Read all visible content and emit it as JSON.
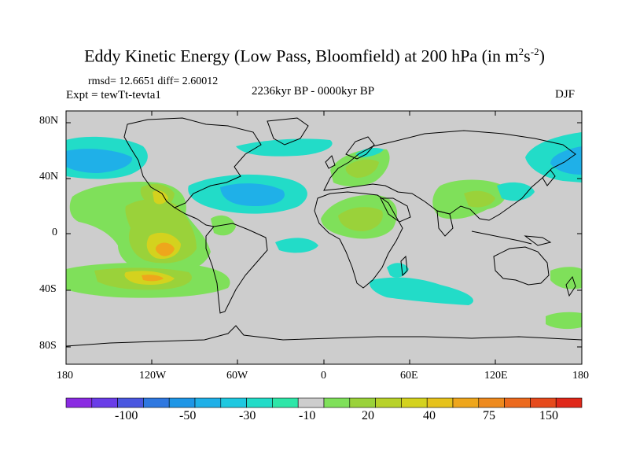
{
  "title": {
    "main": "Eddy Kinetic Energy (Low Pass, Bloomfield) at 200 hPa (in m",
    "sup1": "2",
    "mid": "s",
    "sup2": "-2",
    "close": ")"
  },
  "stats": "rmsd= 12.6651 diff= 2.60012",
  "expt": "Expt = tewTt-tevta1",
  "period": "2236kyr BP - 0000kyr BP",
  "season": "DJF",
  "lat_ticks": [
    "80N",
    "40N",
    "0",
    "40S",
    "80S"
  ],
  "lon_ticks": [
    "180",
    "120W",
    "60W",
    "0",
    "60E",
    "120E",
    "180"
  ],
  "colorbar": {
    "colors": [
      "#8a2be2",
      "#6a3de8",
      "#4a57e0",
      "#2f78e0",
      "#1e96e6",
      "#1fb0e8",
      "#1ec8e0",
      "#22dcc8",
      "#2ee6a8",
      "#cdcdcd",
      "#7fe05a",
      "#9ad23a",
      "#b8d22a",
      "#d4d21e",
      "#e6c21c",
      "#eea61c",
      "#ee8a1e",
      "#ec6a1e",
      "#e64a1c",
      "#e0281a"
    ],
    "labels": [
      "-100",
      "-50",
      "-30",
      "-10",
      "20",
      "40",
      "75",
      "150"
    ]
  },
  "legend_colors": {
    "land_bg": "#cdcdcd",
    "cyan": "#22dcc8",
    "light_blue": "#1fb0e8",
    "blue": "#1e96e6",
    "green_light": "#7fe05a",
    "green": "#9ad23a",
    "yellow": "#d4d21e",
    "orange": "#eea61c",
    "red_orange": "#ec6a1e"
  }
}
